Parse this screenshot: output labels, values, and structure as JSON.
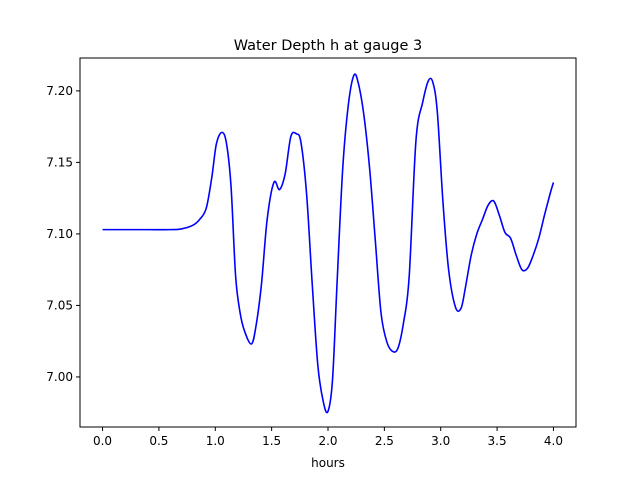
{
  "chart_data": {
    "type": "line",
    "title": "Water Depth h at gauge 3",
    "xlabel": "hours",
    "ylabel": "",
    "xlim": [
      -0.2,
      4.2
    ],
    "ylim": [
      6.965,
      7.223
    ],
    "xticks": [
      0.0,
      0.5,
      1.0,
      1.5,
      2.0,
      2.5,
      3.0,
      3.5,
      4.0
    ],
    "xtick_labels": [
      "0.0",
      "0.5",
      "1.0",
      "1.5",
      "2.0",
      "2.5",
      "3.0",
      "3.5",
      "4.0"
    ],
    "yticks": [
      7.0,
      7.05,
      7.1,
      7.15,
      7.2
    ],
    "ytick_labels": [
      "7.00",
      "7.05",
      "7.10",
      "7.15",
      "7.20"
    ],
    "grid": false,
    "legend": "none",
    "line_color": "#0000ff",
    "series": [
      {
        "x": [
          0.0,
          0.2,
          0.4,
          0.6,
          0.7,
          0.8,
          0.86,
          0.92,
          0.97,
          1.01,
          1.06,
          1.1,
          1.14,
          1.18,
          1.22,
          1.26,
          1.32,
          1.36,
          1.41,
          1.46,
          1.52,
          1.57,
          1.62,
          1.67,
          1.72,
          1.76,
          1.81,
          1.86,
          1.91,
          1.96,
          2.0,
          2.04,
          2.08,
          2.13,
          2.18,
          2.23,
          2.27,
          2.32,
          2.37,
          2.42,
          2.47,
          2.52,
          2.57,
          2.62,
          2.67,
          2.72,
          2.78,
          2.84,
          2.89,
          2.93,
          2.97,
          3.02,
          3.07,
          3.13,
          3.18,
          3.22,
          3.27,
          3.32,
          3.37,
          3.42,
          3.47,
          3.52,
          3.57,
          3.62,
          3.67,
          3.72,
          3.77,
          3.82,
          3.87,
          3.92,
          3.97,
          4.0
        ],
        "y": [
          7.103,
          7.103,
          7.103,
          7.103,
          7.1035,
          7.106,
          7.11,
          7.118,
          7.14,
          7.163,
          7.171,
          7.163,
          7.133,
          7.071,
          7.045,
          7.032,
          7.023,
          7.035,
          7.065,
          7.11,
          7.136,
          7.131,
          7.142,
          7.168,
          7.17,
          7.164,
          7.128,
          7.065,
          7.008,
          6.982,
          6.976,
          6.998,
          7.065,
          7.145,
          7.19,
          7.211,
          7.205,
          7.182,
          7.145,
          7.095,
          7.045,
          7.025,
          7.018,
          7.02,
          7.038,
          7.07,
          7.165,
          7.192,
          7.207,
          7.206,
          7.185,
          7.122,
          7.075,
          7.049,
          7.048,
          7.063,
          7.085,
          7.1,
          7.11,
          7.12,
          7.123,
          7.113,
          7.101,
          7.097,
          7.085,
          7.075,
          7.076,
          7.085,
          7.097,
          7.113,
          7.128,
          7.136
        ]
      }
    ]
  }
}
